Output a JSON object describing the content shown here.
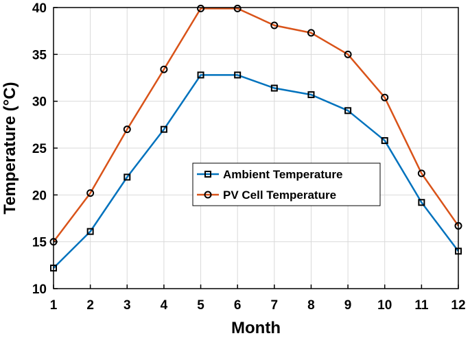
{
  "chart_data": {
    "type": "line",
    "title": "",
    "xlabel": "Month",
    "ylabel": "Temperature (°C)",
    "x": [
      1,
      2,
      3,
      4,
      5,
      6,
      7,
      8,
      9,
      10,
      11,
      12
    ],
    "xlim": [
      1,
      12
    ],
    "ylim": [
      10,
      40
    ],
    "xticks": [
      "1",
      "2",
      "3",
      "4",
      "5",
      "6",
      "7",
      "8",
      "9",
      "10",
      "11",
      "12"
    ],
    "yticks": [
      "10",
      "15",
      "20",
      "25",
      "30",
      "35",
      "40"
    ],
    "grid": true,
    "legend_position": "center",
    "series": [
      {
        "name": "Ambient Temperature",
        "marker": "square",
        "color": "#0072BD",
        "values": [
          12.2,
          16.1,
          21.9,
          27.0,
          32.8,
          32.8,
          31.4,
          30.7,
          29.0,
          25.8,
          19.2,
          14.0
        ]
      },
      {
        "name": "PV Cell Temperature",
        "marker": "circle",
        "color": "#D95319",
        "values": [
          15.0,
          20.2,
          27.0,
          33.4,
          39.9,
          39.9,
          38.1,
          37.3,
          35.0,
          30.4,
          22.3,
          16.7
        ]
      }
    ]
  }
}
